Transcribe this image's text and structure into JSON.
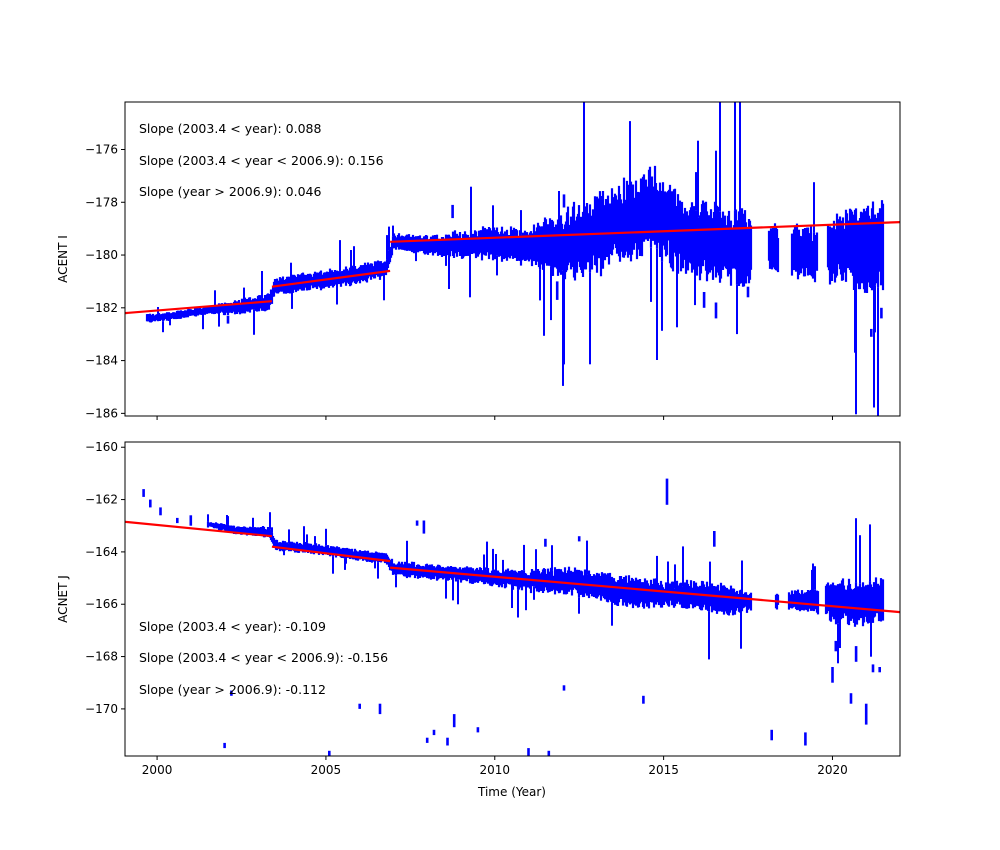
{
  "xaxis": {
    "label": "Time (Year)",
    "range": [
      1999.05,
      2022.0
    ],
    "ticks": [
      2000,
      2005,
      2010,
      2015,
      2020
    ],
    "tick_labels": [
      "2000",
      "2005",
      "2010",
      "2015",
      "2020"
    ]
  },
  "colors": {
    "data": "#0000ff",
    "fit": "#ff0000",
    "axes": "#000000"
  },
  "chart_data": [
    {
      "type": "scatter",
      "ylabel": "ACENT I",
      "ylim": [
        -186.1,
        -174.2
      ],
      "yticks": [
        -176,
        -178,
        -180,
        -182,
        -184,
        -186
      ],
      "ytick_labels": [
        "−176",
        "−178",
        "−180",
        "−182",
        "−184",
        "−186"
      ],
      "show_x_tick_labels": false,
      "annotations": [
        "Slope (2003.4 < year):  0.088",
        "Slope (2003.4 <  year < 2006.9): 0.156",
        "Slope (year > 2006.9):  0.046"
      ],
      "fit_segments": [
        {
          "x": [
            1999.05,
            2003.4
          ],
          "y": [
            -182.2,
            -181.75
          ]
        },
        {
          "x": [
            2003.4,
            2006.9
          ],
          "y": [
            -181.2,
            -180.6
          ]
        },
        {
          "x": [
            2006.9,
            2022.0
          ],
          "y": [
            -179.5,
            -178.75
          ]
        }
      ],
      "envelope": [
        {
          "x": 1999.7,
          "lo": -182.6,
          "hi": -182.2
        },
        {
          "x": 2000.5,
          "lo": -182.5,
          "hi": -182.1
        },
        {
          "x": 2001.5,
          "lo": -182.3,
          "hi": -181.9
        },
        {
          "x": 2002.5,
          "lo": -182.3,
          "hi": -181.6
        },
        {
          "x": 2003.3,
          "lo": -182.2,
          "hi": -181.4
        },
        {
          "x": 2003.5,
          "lo": -181.6,
          "hi": -180.8
        },
        {
          "x": 2004.5,
          "lo": -181.4,
          "hi": -180.6
        },
        {
          "x": 2005.5,
          "lo": -181.3,
          "hi": -180.4
        },
        {
          "x": 2006.8,
          "lo": -180.9,
          "hi": -180.1
        },
        {
          "x": 2007.0,
          "lo": -179.8,
          "hi": -179.1
        },
        {
          "x": 2008.0,
          "lo": -180.1,
          "hi": -179.2
        },
        {
          "x": 2009.0,
          "lo": -180.2,
          "hi": -179.0
        },
        {
          "x": 2010.0,
          "lo": -180.3,
          "hi": -178.8
        },
        {
          "x": 2011.0,
          "lo": -180.5,
          "hi": -178.9
        },
        {
          "x": 2012.0,
          "lo": -181.2,
          "hi": -178.0
        },
        {
          "x": 2013.0,
          "lo": -181.0,
          "hi": -177.5
        },
        {
          "x": 2014.0,
          "lo": -180.6,
          "hi": -176.8
        },
        {
          "x": 2014.6,
          "lo": -180.2,
          "hi": -176.3
        },
        {
          "x": 2015.5,
          "lo": -180.9,
          "hi": -177.5
        },
        {
          "x": 2016.5,
          "lo": -181.3,
          "hi": -177.8
        },
        {
          "x": 2017.3,
          "lo": -181.6,
          "hi": -178.0
        },
        {
          "x": 2018.0,
          "lo": -180.8,
          "hi": -178.6
        },
        {
          "x": 2019.0,
          "lo": -181.0,
          "hi": -178.7
        },
        {
          "x": 2019.7,
          "lo": -181.2,
          "hi": -178.9
        },
        {
          "x": 2020.3,
          "lo": -181.4,
          "hi": -178.0
        },
        {
          "x": 2021.0,
          "lo": -181.8,
          "hi": -177.8
        },
        {
          "x": 2021.5,
          "lo": -181.5,
          "hi": -177.6
        }
      ],
      "gaps": [
        [
          2017.6,
          2018.1
        ],
        [
          2018.4,
          2018.8
        ],
        [
          2019.55,
          2019.85
        ]
      ],
      "outliers": [
        {
          "x": 2002.1,
          "lo": -182.6,
          "hi": -182.3
        },
        {
          "x": 2008.75,
          "lo": -178.6,
          "hi": -178.1
        },
        {
          "x": 2011.85,
          "lo": -181.7,
          "hi": -181.0
        },
        {
          "x": 2012.05,
          "lo": -178.2,
          "hi": -177.7
        },
        {
          "x": 2016.2,
          "lo": -182.0,
          "hi": -181.4
        },
        {
          "x": 2016.55,
          "lo": -182.4,
          "hi": -181.8
        },
        {
          "x": 2017.5,
          "lo": -181.6,
          "hi": -181.2
        },
        {
          "x": 2021.15,
          "lo": -183.1,
          "hi": -182.8
        },
        {
          "x": 2021.45,
          "lo": -182.4,
          "hi": -182.0
        }
      ]
    },
    {
      "type": "scatter",
      "ylabel": "ACNET J",
      "ylim": [
        -171.8,
        -159.8
      ],
      "yticks": [
        -160,
        -162,
        -164,
        -166,
        -168,
        -170
      ],
      "ytick_labels": [
        "−160",
        "−162",
        "−164",
        "−166",
        "−168",
        "−170"
      ],
      "show_x_tick_labels": true,
      "annotations": [
        "Slope (2003.4 < year):  -0.109",
        "Slope (2003.4 <  year < 2006.9): -0.156",
        "Slope (year > 2006.9):  -0.112"
      ],
      "fit_segments": [
        {
          "x": [
            1999.05,
            2003.4
          ],
          "y": [
            -162.85,
            -163.4
          ]
        },
        {
          "x": [
            2003.4,
            2006.9
          ],
          "y": [
            -163.8,
            -164.35
          ]
        },
        {
          "x": [
            2006.9,
            2022.0
          ],
          "y": [
            -164.6,
            -166.3
          ]
        }
      ],
      "envelope": [
        {
          "x": 2001.5,
          "lo": -163.1,
          "hi": -162.8
        },
        {
          "x": 2002.5,
          "lo": -163.4,
          "hi": -163.0
        },
        {
          "x": 2003.3,
          "lo": -163.5,
          "hi": -163.0
        },
        {
          "x": 2003.5,
          "lo": -164.0,
          "hi": -163.5
        },
        {
          "x": 2004.5,
          "lo": -164.1,
          "hi": -163.6
        },
        {
          "x": 2005.5,
          "lo": -164.3,
          "hi": -163.8
        },
        {
          "x": 2006.8,
          "lo": -164.5,
          "hi": -164.0
        },
        {
          "x": 2007.0,
          "lo": -165.0,
          "hi": -164.3
        },
        {
          "x": 2008.0,
          "lo": -165.1,
          "hi": -164.4
        },
        {
          "x": 2009.0,
          "lo": -165.2,
          "hi": -164.5
        },
        {
          "x": 2010.0,
          "lo": -165.4,
          "hi": -164.6
        },
        {
          "x": 2011.0,
          "lo": -165.6,
          "hi": -164.6
        },
        {
          "x": 2012.0,
          "lo": -165.7,
          "hi": -164.5
        },
        {
          "x": 2013.0,
          "lo": -165.9,
          "hi": -164.6
        },
        {
          "x": 2014.0,
          "lo": -166.3,
          "hi": -164.8
        },
        {
          "x": 2015.0,
          "lo": -166.2,
          "hi": -165.0
        },
        {
          "x": 2016.0,
          "lo": -166.3,
          "hi": -165.0
        },
        {
          "x": 2017.0,
          "lo": -166.6,
          "hi": -165.2
        },
        {
          "x": 2017.5,
          "lo": -166.4,
          "hi": -165.4
        },
        {
          "x": 2018.8,
          "lo": -166.3,
          "hi": -165.4
        },
        {
          "x": 2019.5,
          "lo": -166.4,
          "hi": -165.3
        },
        {
          "x": 2020.0,
          "lo": -166.9,
          "hi": -164.9
        },
        {
          "x": 2021.0,
          "lo": -167.0,
          "hi": -165.0
        },
        {
          "x": 2021.5,
          "lo": -166.8,
          "hi": -164.8
        }
      ],
      "gaps": [
        [
          2017.6,
          2018.3
        ],
        [
          2018.4,
          2018.7
        ],
        [
          2019.6,
          2019.8
        ]
      ],
      "outliers": [
        {
          "x": 1999.6,
          "lo": -161.9,
          "hi": -161.6
        },
        {
          "x": 1999.8,
          "lo": -162.3,
          "hi": -162.0
        },
        {
          "x": 2000.1,
          "lo": -162.6,
          "hi": -162.3
        },
        {
          "x": 2000.6,
          "lo": -162.9,
          "hi": -162.7
        },
        {
          "x": 2001.0,
          "lo": -163.0,
          "hi": -162.6
        },
        {
          "x": 2002.0,
          "lo": -171.5,
          "hi": -171.3
        },
        {
          "x": 2002.2,
          "lo": -169.5,
          "hi": -169.3
        },
        {
          "x": 2005.1,
          "lo": -171.8,
          "hi": -171.6
        },
        {
          "x": 2006.0,
          "lo": -170.0,
          "hi": -169.8
        },
        {
          "x": 2006.6,
          "lo": -170.2,
          "hi": -169.8
        },
        {
          "x": 2007.7,
          "lo": -163.0,
          "hi": -162.8
        },
        {
          "x": 2007.9,
          "lo": -163.3,
          "hi": -162.8
        },
        {
          "x": 2008.0,
          "lo": -171.3,
          "hi": -171.1
        },
        {
          "x": 2008.2,
          "lo": -171.0,
          "hi": -170.8
        },
        {
          "x": 2008.6,
          "lo": -171.4,
          "hi": -171.1
        },
        {
          "x": 2008.8,
          "lo": -170.7,
          "hi": -170.2
        },
        {
          "x": 2009.5,
          "lo": -170.9,
          "hi": -170.7
        },
        {
          "x": 2011.0,
          "lo": -171.8,
          "hi": -171.5
        },
        {
          "x": 2011.6,
          "lo": -171.8,
          "hi": -171.6
        },
        {
          "x": 2011.5,
          "lo": -163.8,
          "hi": -163.5
        },
        {
          "x": 2012.05,
          "lo": -169.3,
          "hi": -169.1
        },
        {
          "x": 2012.5,
          "lo": -163.6,
          "hi": -163.4
        },
        {
          "x": 2014.4,
          "lo": -169.8,
          "hi": -169.5
        },
        {
          "x": 2015.1,
          "lo": -162.2,
          "hi": -161.2
        },
        {
          "x": 2016.5,
          "lo": -163.8,
          "hi": -163.2
        },
        {
          "x": 2018.2,
          "lo": -171.2,
          "hi": -170.8
        },
        {
          "x": 2019.2,
          "lo": -171.4,
          "hi": -170.9
        },
        {
          "x": 2020.0,
          "lo": -169.0,
          "hi": -168.4
        },
        {
          "x": 2020.1,
          "lo": -167.8,
          "hi": -167.4
        },
        {
          "x": 2020.55,
          "lo": -169.8,
          "hi": -169.4
        },
        {
          "x": 2020.7,
          "lo": -168.2,
          "hi": -167.6
        },
        {
          "x": 2021.0,
          "lo": -170.6,
          "hi": -169.8
        },
        {
          "x": 2021.2,
          "lo": -168.6,
          "hi": -168.3
        },
        {
          "x": 2021.4,
          "lo": -168.6,
          "hi": -168.4
        }
      ]
    }
  ]
}
